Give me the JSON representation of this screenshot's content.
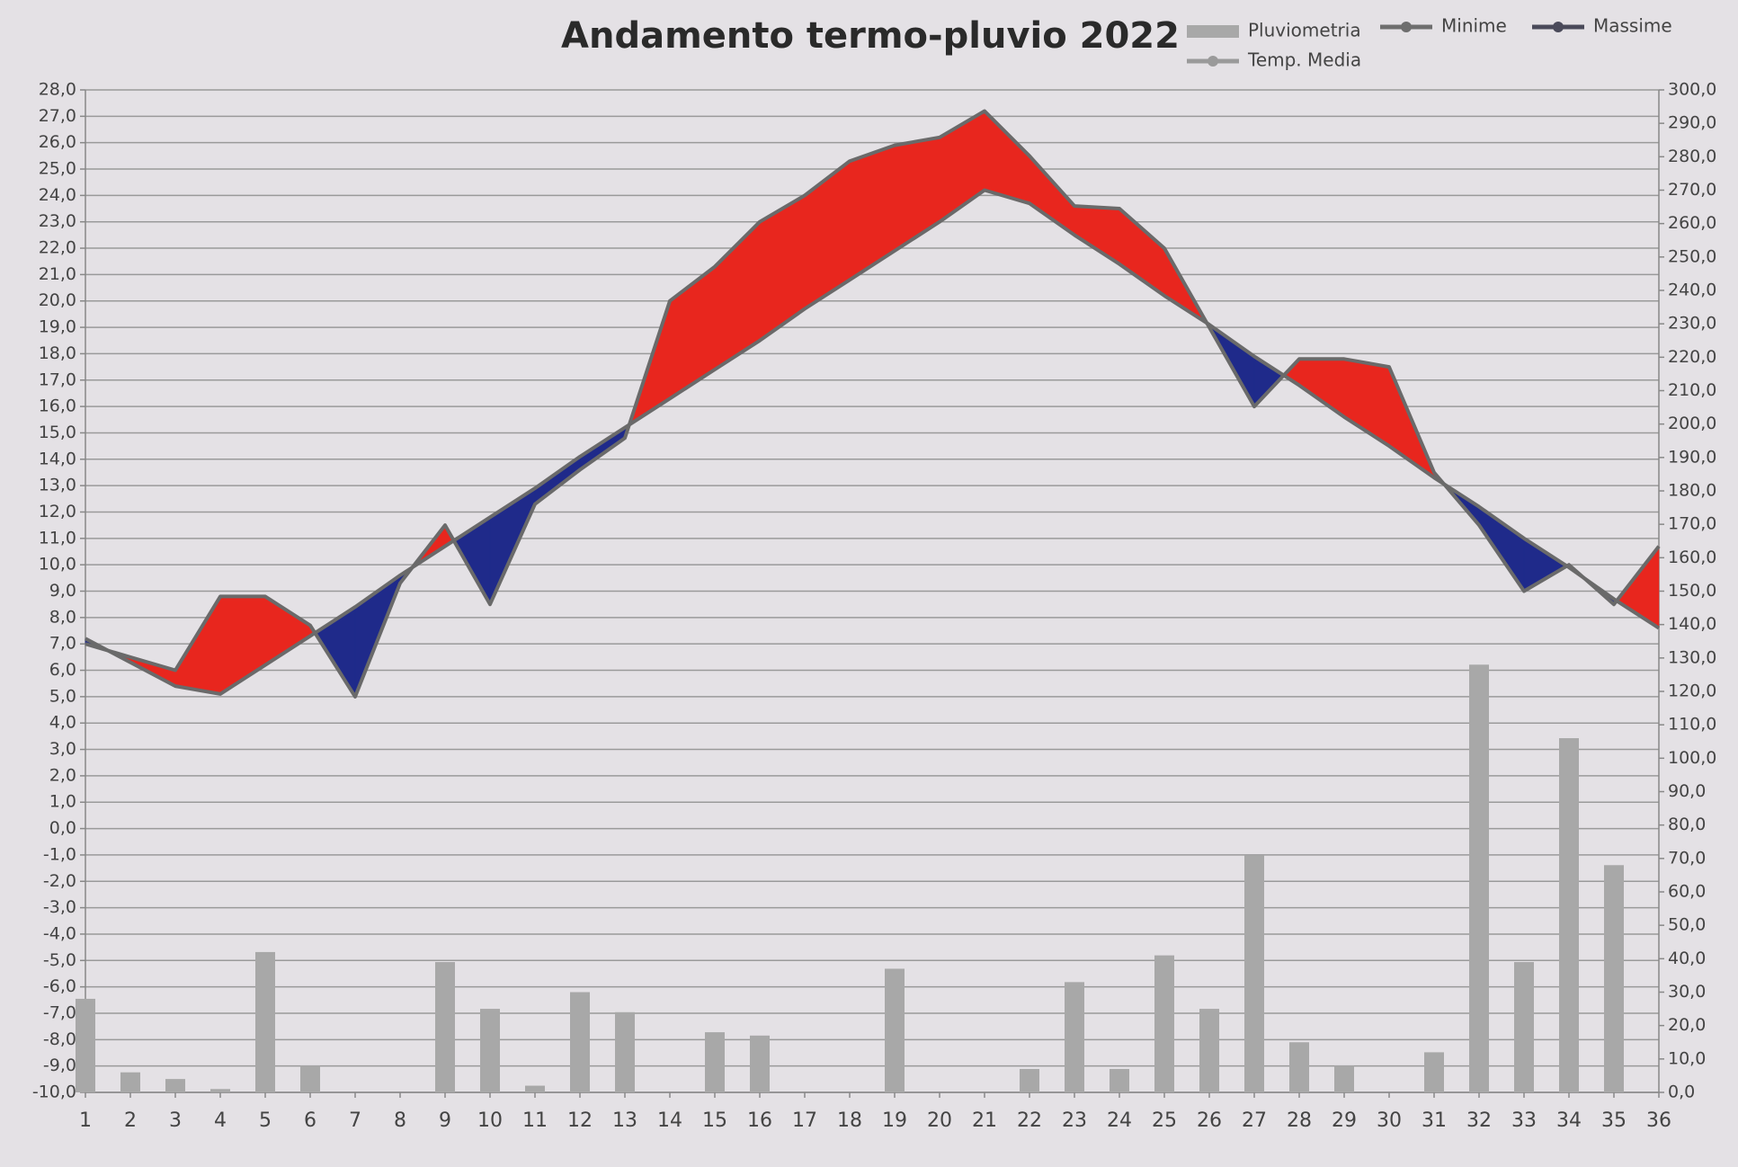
{
  "chart_data": {
    "type": "bar-line",
    "title": "Andamento termo-pluvio 2022",
    "categories": [
      "1",
      "2",
      "3",
      "4",
      "5",
      "6",
      "7",
      "8",
      "9",
      "10",
      "11",
      "12",
      "13",
      "14",
      "15",
      "16",
      "17",
      "18",
      "19",
      "20",
      "21",
      "22",
      "23",
      "24",
      "25",
      "26",
      "27",
      "28",
      "29",
      "30",
      "31",
      "32",
      "33",
      "34",
      "35",
      "36"
    ],
    "legend": [
      {
        "name": "Pluviometria",
        "color": "#a8a8a8",
        "kind": "bar"
      },
      {
        "name": "Minime",
        "color": "#6e6e6e",
        "kind": "line"
      },
      {
        "name": "Massime",
        "color": "#4a4a5a",
        "kind": "line"
      },
      {
        "name": "Temp. Media",
        "color": "#9a9a9a",
        "kind": "line"
      }
    ],
    "series": [
      {
        "type": "bar",
        "axis": "y2",
        "color": "#a8a8a8",
        "values": [
          28,
          6,
          4,
          1,
          42,
          8,
          0,
          0,
          39,
          25,
          2,
          30,
          24,
          0,
          18,
          17,
          0,
          0,
          37,
          0,
          0,
          7,
          33,
          7,
          41,
          25,
          71,
          15,
          8,
          0,
          12,
          128,
          39,
          106,
          68,
          0
        ]
      },
      {
        "type": "line",
        "color": "#6a6a6a",
        "values": [
          7.0,
          6.5,
          6.0,
          8.8,
          8.8,
          7.7,
          5.0,
          9.3,
          11.5,
          8.5,
          12.3,
          13.6,
          14.8,
          20.0,
          21.3,
          23.0,
          24.0,
          25.3,
          25.9,
          26.2,
          27.2,
          25.5,
          23.6,
          23.5,
          22.0,
          19.0,
          16.0,
          17.8,
          17.8,
          17.5,
          13.5,
          11.5,
          9.0,
          10.0,
          8.5,
          10.7
        ]
      },
      {
        "type": "line",
        "color": "#6a6a6a",
        "values": [
          7.2,
          6.3,
          5.4,
          5.1,
          6.2,
          7.3,
          8.4,
          9.6,
          10.7,
          11.8,
          12.9,
          14.1,
          15.2,
          16.3,
          17.4,
          18.5,
          19.7,
          20.8,
          21.9,
          23.0,
          24.2,
          23.7,
          22.5,
          21.4,
          20.2,
          19.1,
          17.9,
          16.8,
          15.6,
          14.5,
          13.3,
          12.2,
          11.0,
          9.9,
          8.7,
          7.6
        ]
      }
    ],
    "above_color": "#e8261e",
    "below_color": "#1f2a8a",
    "ylim": [
      -10,
      28
    ],
    "yticks": [
      {
        "value": -10,
        "label": "-10,0"
      },
      {
        "value": -9,
        "label": "-9,0"
      },
      {
        "value": -8,
        "label": "-8,0"
      },
      {
        "value": -7,
        "label": "-7,0"
      },
      {
        "value": -6,
        "label": "-6,0"
      },
      {
        "value": -5,
        "label": "-5,0"
      },
      {
        "value": -4,
        "label": "-4,0"
      },
      {
        "value": -3,
        "label": "-3,0"
      },
      {
        "value": -2,
        "label": "-2,0"
      },
      {
        "value": -1,
        "label": "-1,0"
      },
      {
        "value": 0,
        "label": "0,0"
      },
      {
        "value": 1,
        "label": "1,0"
      },
      {
        "value": 2,
        "label": "2,0"
      },
      {
        "value": 3,
        "label": "3,0"
      },
      {
        "value": 4,
        "label": "4,0"
      },
      {
        "value": 5,
        "label": "5,0"
      },
      {
        "value": 6,
        "label": "6,0"
      },
      {
        "value": 7,
        "label": "7,0"
      },
      {
        "value": 8,
        "label": "8,0"
      },
      {
        "value": 9,
        "label": "9,0"
      },
      {
        "value": 10,
        "label": "10,0"
      },
      {
        "value": 11,
        "label": "11,0"
      },
      {
        "value": 12,
        "label": "12,0"
      },
      {
        "value": 13,
        "label": "13,0"
      },
      {
        "value": 14,
        "label": "14,0"
      },
      {
        "value": 15,
        "label": "15,0"
      },
      {
        "value": 16,
        "label": "16,0"
      },
      {
        "value": 17,
        "label": "17,0"
      },
      {
        "value": 18,
        "label": "18,0"
      },
      {
        "value": 19,
        "label": "19,0"
      },
      {
        "value": 20,
        "label": "20,0"
      },
      {
        "value": 21,
        "label": "21,0"
      },
      {
        "value": 22,
        "label": "22,0"
      },
      {
        "value": 23,
        "label": "23,0"
      },
      {
        "value": 24,
        "label": "24,0"
      },
      {
        "value": 25,
        "label": "25,0"
      },
      {
        "value": 26,
        "label": "26,0"
      },
      {
        "value": 27,
        "label": "27,0"
      },
      {
        "value": 28,
        "label": "28,0"
      }
    ],
    "y2lim": [
      0,
      300
    ],
    "y2ticks": [
      {
        "value": 0,
        "label": "0,0"
      },
      {
        "value": 10,
        "label": "10,0"
      },
      {
        "value": 20,
        "label": "20,0"
      },
      {
        "value": 30,
        "label": "30,0"
      },
      {
        "value": 40,
        "label": "40,0"
      },
      {
        "value": 50,
        "label": "50,0"
      },
      {
        "value": 60,
        "label": "60,0"
      },
      {
        "value": 70,
        "label": "70,0"
      },
      {
        "value": 80,
        "label": "80,0"
      },
      {
        "value": 90,
        "label": "90,0"
      },
      {
        "value": 100,
        "label": "100,0"
      },
      {
        "value": 110,
        "label": "110,0"
      },
      {
        "value": 120,
        "label": "120,0"
      },
      {
        "value": 130,
        "label": "130,0"
      },
      {
        "value": 140,
        "label": "140,0"
      },
      {
        "value": 150,
        "label": "150,0"
      },
      {
        "value": 160,
        "label": "160,0"
      },
      {
        "value": 170,
        "label": "170,0"
      },
      {
        "value": 180,
        "label": "180,0"
      },
      {
        "value": 190,
        "label": "190,0"
      },
      {
        "value": 200,
        "label": "200,0"
      },
      {
        "value": 210,
        "label": "210,0"
      },
      {
        "value": 220,
        "label": "220,0"
      },
      {
        "value": 230,
        "label": "230,0"
      },
      {
        "value": 240,
        "label": "240,0"
      },
      {
        "value": 250,
        "label": "250,0"
      },
      {
        "value": 260,
        "label": "260,0"
      },
      {
        "value": 270,
        "label": "270,0"
      },
      {
        "value": 280,
        "label": "280,0"
      },
      {
        "value": 290,
        "label": "290,0"
      },
      {
        "value": 300,
        "label": "300,0"
      }
    ],
    "grid": true
  }
}
